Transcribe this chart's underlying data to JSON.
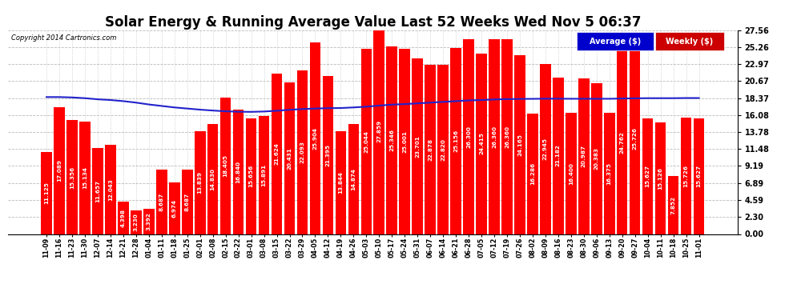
{
  "title": "Solar Energy & Running Average Value Last 52 Weeks Wed Nov 5 06:37",
  "copyright": "Copyright 2014 Cartronics.com",
  "categories": [
    "11-09",
    "11-16",
    "11-23",
    "11-30",
    "12-07",
    "12-14",
    "12-21",
    "12-28",
    "01-04",
    "01-11",
    "01-18",
    "01-25",
    "02-01",
    "02-08",
    "02-15",
    "02-22",
    "03-01",
    "03-08",
    "03-15",
    "03-22",
    "03-29",
    "04-05",
    "04-12",
    "04-19",
    "04-26",
    "05-03",
    "05-10",
    "05-17",
    "05-24",
    "05-31",
    "06-07",
    "06-14",
    "06-21",
    "06-28",
    "07-05",
    "07-12",
    "07-19",
    "07-26",
    "08-02",
    "08-09",
    "08-16",
    "08-23",
    "08-30",
    "09-06",
    "09-13",
    "09-20",
    "09-27",
    "10-04",
    "10-11",
    "10-18",
    "10-25",
    "11-01"
  ],
  "weekly_values": [
    11.125,
    17.089,
    15.356,
    15.134,
    11.657,
    12.043,
    4.398,
    3.23,
    3.392,
    8.687,
    6.974,
    8.687,
    13.839,
    14.83,
    18.405,
    16.84,
    15.656,
    15.891,
    21.624,
    20.431,
    22.093,
    25.904,
    21.395,
    13.844,
    14.874,
    25.044,
    27.859,
    25.346,
    25.001,
    23.701,
    22.878,
    22.82,
    25.156,
    26.3,
    24.415,
    26.36,
    26.36,
    24.165,
    16.286,
    22.945,
    21.182,
    16.4,
    20.987,
    20.383,
    16.375,
    24.762,
    25.726,
    15.627,
    15.126,
    7.852,
    15.726,
    15.627
  ],
  "avg_values": [
    18.5,
    18.5,
    18.45,
    18.35,
    18.2,
    18.1,
    17.95,
    17.75,
    17.5,
    17.3,
    17.1,
    16.95,
    16.8,
    16.68,
    16.58,
    16.52,
    16.5,
    16.55,
    16.65,
    16.78,
    16.88,
    16.95,
    17.0,
    17.02,
    17.1,
    17.2,
    17.35,
    17.48,
    17.55,
    17.65,
    17.75,
    17.85,
    17.95,
    18.05,
    18.1,
    18.18,
    18.22,
    18.25,
    18.26,
    18.28,
    18.28,
    18.27,
    18.27,
    18.27,
    18.27,
    18.3,
    18.33,
    18.35,
    18.35,
    18.35,
    18.37,
    18.37
  ],
  "yticks": [
    0.0,
    2.3,
    4.59,
    6.89,
    9.19,
    11.48,
    13.78,
    16.08,
    18.37,
    20.67,
    22.97,
    25.26,
    27.56
  ],
  "bar_color": "#ff0000",
  "line_color": "#2222cc",
  "background_color": "#ffffff",
  "plot_bg_color": "#ffffff",
  "grid_color": "#bbbbbb",
  "title_fontsize": 12,
  "bar_label_fontsize": 5.2,
  "legend_avg_color": "#0000cc",
  "legend_weekly_color": "#cc0000"
}
